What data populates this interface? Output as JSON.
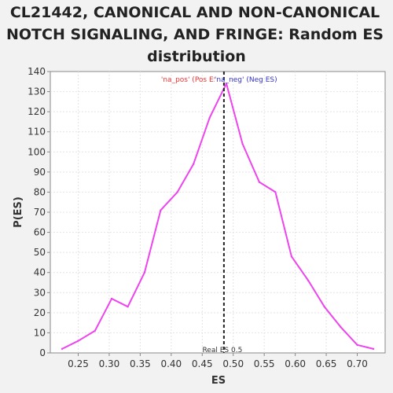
{
  "chart_data": {
    "type": "line",
    "title_lines": [
      "CL21442, CANONICAL AND NON-CANONICAL",
      "NOTCH SIGNALING, AND FRINGE: Random ES",
      "distribution"
    ],
    "xlabel": "ES",
    "ylabel": "P(ES)",
    "xlim": [
      0.205,
      0.745
    ],
    "ylim": [
      0,
      140
    ],
    "xticks": [
      0.25,
      0.3,
      0.35,
      0.4,
      0.45,
      0.5,
      0.55,
      0.6,
      0.65,
      0.7
    ],
    "xtick_labels": [
      "0.25",
      "0.30",
      "0.35",
      "0.40",
      "0.45",
      "0.50",
      "0.55",
      "0.60",
      "0.65",
      "0.70"
    ],
    "yticks": [
      0,
      10,
      20,
      30,
      40,
      50,
      60,
      70,
      80,
      90,
      100,
      110,
      120,
      130,
      140
    ],
    "ytick_labels": [
      "0",
      "10",
      "20",
      "30",
      "40",
      "50",
      "60",
      "70",
      "80",
      "90",
      "100",
      "110",
      "120",
      "130",
      "140"
    ],
    "grid": true,
    "series": [
      {
        "color": "#ee44ee",
        "x": [
          0.224,
          0.25,
          0.277,
          0.304,
          0.33,
          0.357,
          0.383,
          0.41,
          0.436,
          0.462,
          0.489,
          0.515,
          0.542,
          0.568,
          0.594,
          0.621,
          0.647,
          0.673,
          0.7,
          0.726
        ],
        "y": [
          2,
          6,
          11,
          27,
          23,
          40,
          71,
          80,
          94,
          117,
          134,
          104,
          85,
          80,
          48,
          36,
          23,
          13,
          4,
          2
        ]
      }
    ],
    "real_es": {
      "x": 0.485,
      "label": "Real ES 0.5",
      "color": "#222222"
    },
    "annotations": [
      {
        "text": "'na_pos' (Pos ES)",
        "color": "#ee3333"
      },
      {
        "text": "'na_neg' (Neg ES)",
        "color": "#3333cc"
      }
    ]
  }
}
